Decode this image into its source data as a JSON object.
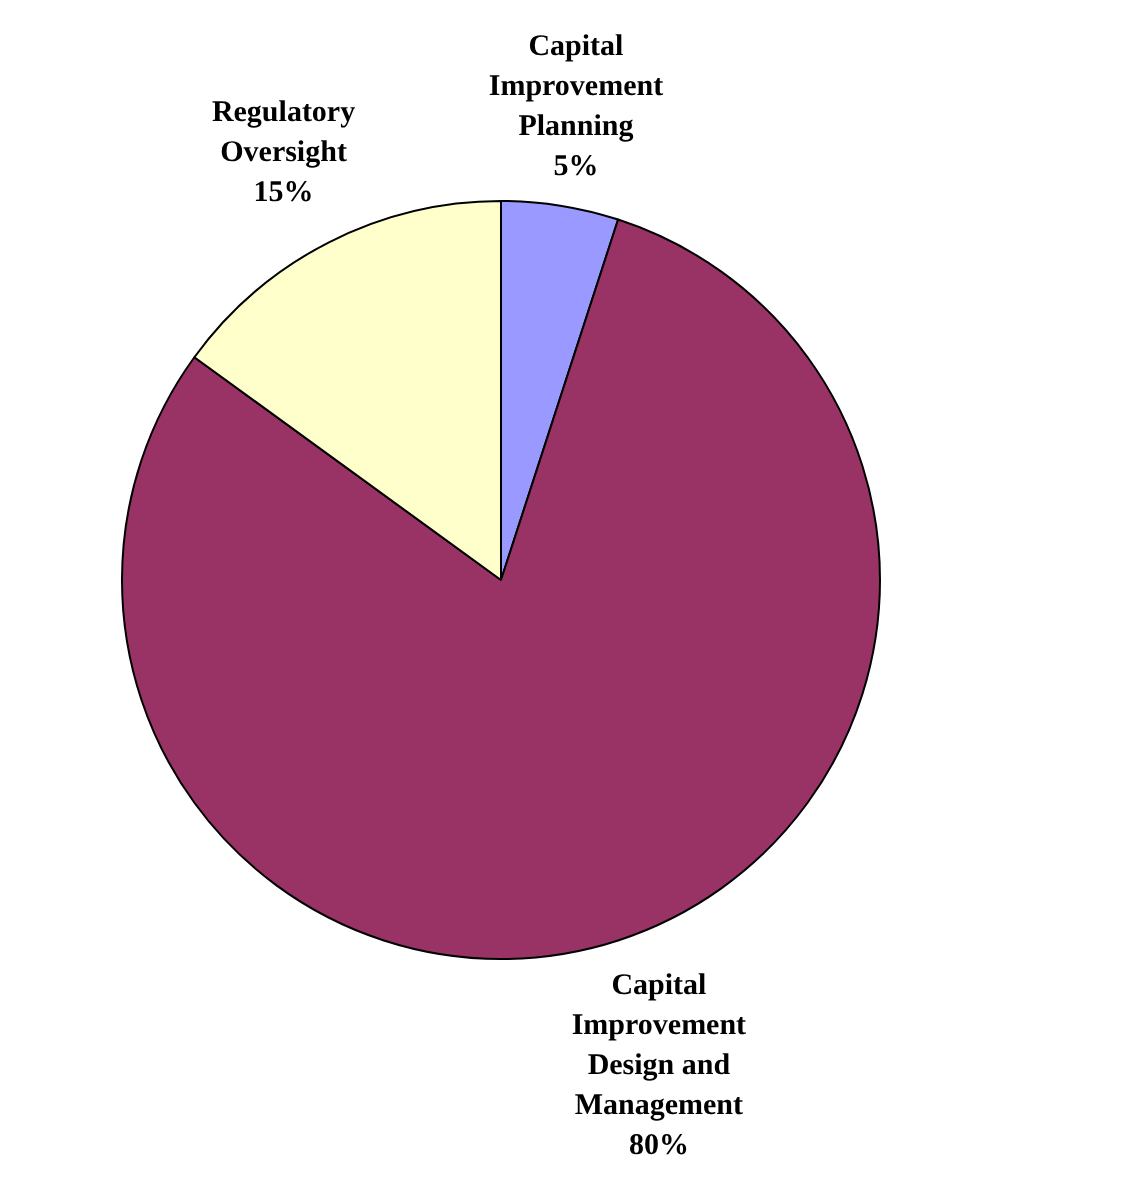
{
  "chart_data": {
    "type": "pie",
    "categories": [
      "Capital Improvement Planning",
      "Capital Improvement Design and Management",
      "Regulatory Oversight"
    ],
    "values": [
      5,
      80,
      15
    ],
    "colors": [
      "#9999ff",
      "#993366",
      "#ffffcc"
    ],
    "value_labels": [
      "5%",
      "80%",
      "15%"
    ],
    "legend": false
  }
}
